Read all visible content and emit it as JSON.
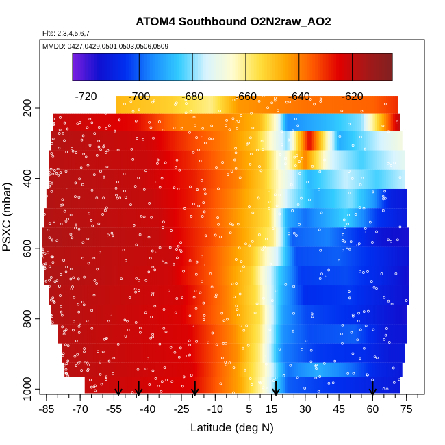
{
  "chart_data": {
    "type": "heatmap",
    "title": "ATOM4 Southbound O2N2raw_AO2",
    "subtitle_flights": "Flts: 2,3,4,5,6,7",
    "subtitle_dates": "MMDD: 0427,0429,0501,0503,0506,0509",
    "xlabel": "Latitude (deg N)",
    "ylabel": "PSXC (mbar)",
    "xlim": [
      -88,
      83
    ],
    "ylim": [
      1015,
      5
    ],
    "x_ticks": [
      -85,
      -70,
      -55,
      -40,
      -25,
      -10,
      5,
      15,
      30,
      45,
      60,
      75
    ],
    "x_tick_labels": [
      "-85",
      "-70",
      "-55",
      "-40",
      "-25",
      "-10",
      "5",
      "15",
      "30",
      "45",
      "60",
      "75"
    ],
    "x_minor_step": 5,
    "y_ticks": [
      200,
      400,
      600,
      800,
      1000
    ],
    "y_tick_labels": [
      "200",
      "400",
      "600",
      "800",
      "1000"
    ],
    "colorbar": {
      "range": [
        -725,
        -605
      ],
      "ticks": [
        -720,
        -700,
        -680,
        -660,
        -640,
        -620
      ],
      "tick_labels": [
        "-720",
        "-700",
        "-680",
        "-660",
        "-640",
        "-620"
      ],
      "colors": [
        "#7a1fe0",
        "#1010d0",
        "#0030f0",
        "#1a8cff",
        "#33ccff",
        "#d8f4ff",
        "#fffcd0",
        "#ffe040",
        "#ffa800",
        "#ff5a00",
        "#e00000",
        "#a81818",
        "#802020"
      ]
    },
    "profile_arrows_lat": [
      -53,
      -44,
      -19,
      17,
      60
    ],
    "bands": [
      {
        "pmin": 165,
        "pmax": 215,
        "lat_min": -54,
        "lat_max": 71,
        "profile": [
          [
            -54,
            -648
          ],
          [
            -30,
            -652
          ],
          [
            -12,
            -660
          ],
          [
            0,
            -643
          ],
          [
            30,
            -638
          ],
          [
            60,
            -636
          ],
          [
            71,
            -630
          ]
        ]
      },
      {
        "pmin": 215,
        "pmax": 265,
        "lat_min": -82,
        "lat_max": 72,
        "profile": [
          [
            -82,
            -620
          ],
          [
            -45,
            -626
          ],
          [
            -25,
            -640
          ],
          [
            -5,
            -640
          ],
          [
            10,
            -648
          ],
          [
            17,
            -666
          ],
          [
            22,
            -695
          ],
          [
            40,
            -688
          ],
          [
            55,
            -680
          ],
          [
            72,
            -618
          ]
        ]
      },
      {
        "pmin": 265,
        "pmax": 320,
        "lat_min": -83,
        "lat_max": 73,
        "profile": [
          [
            -83,
            -617
          ],
          [
            -40,
            -622
          ],
          [
            -22,
            -632
          ],
          [
            -5,
            -640
          ],
          [
            8,
            -650
          ],
          [
            16,
            -668
          ],
          [
            22,
            -680
          ],
          [
            32,
            -625
          ],
          [
            45,
            -690
          ],
          [
            60,
            -678
          ],
          [
            73,
            -668
          ]
        ]
      },
      {
        "pmin": 320,
        "pmax": 375,
        "lat_min": -84,
        "lat_max": 74,
        "profile": [
          [
            -84,
            -618
          ],
          [
            -40,
            -621
          ],
          [
            -20,
            -630
          ],
          [
            0,
            -642
          ],
          [
            12,
            -650
          ],
          [
            20,
            -672
          ],
          [
            30,
            -640
          ],
          [
            42,
            -675
          ],
          [
            55,
            -684
          ],
          [
            74,
            -672
          ]
        ]
      },
      {
        "pmin": 375,
        "pmax": 430,
        "lat_min": -84,
        "lat_max": 74,
        "profile": [
          [
            -84,
            -617
          ],
          [
            -45,
            -620
          ],
          [
            -20,
            -628
          ],
          [
            0,
            -640
          ],
          [
            12,
            -652
          ],
          [
            20,
            -668
          ],
          [
            32,
            -688
          ],
          [
            48,
            -676
          ],
          [
            62,
            -684
          ],
          [
            74,
            -676
          ]
        ]
      },
      {
        "pmin": 430,
        "pmax": 485,
        "lat_min": -85,
        "lat_max": 75,
        "profile": [
          [
            -85,
            -617
          ],
          [
            -40,
            -620
          ],
          [
            -20,
            -628
          ],
          [
            0,
            -642
          ],
          [
            14,
            -654
          ],
          [
            22,
            -676
          ],
          [
            35,
            -690
          ],
          [
            50,
            -680
          ],
          [
            60,
            -692
          ],
          [
            68,
            -710
          ],
          [
            75,
            -712
          ]
        ]
      },
      {
        "pmin": 485,
        "pmax": 540,
        "lat_min": -86,
        "lat_max": 75,
        "profile": [
          [
            -86,
            -617
          ],
          [
            -35,
            -621
          ],
          [
            -15,
            -632
          ],
          [
            2,
            -645
          ],
          [
            14,
            -655
          ],
          [
            22,
            -690
          ],
          [
            30,
            -698
          ],
          [
            48,
            -684
          ],
          [
            62,
            -704
          ],
          [
            75,
            -712
          ]
        ]
      },
      {
        "pmin": 540,
        "pmax": 595,
        "lat_min": -87,
        "lat_max": 76,
        "profile": [
          [
            -87,
            -616
          ],
          [
            -35,
            -620
          ],
          [
            -12,
            -633
          ],
          [
            4,
            -646
          ],
          [
            16,
            -660
          ],
          [
            24,
            -700
          ],
          [
            40,
            -696
          ],
          [
            55,
            -706
          ],
          [
            65,
            -714
          ],
          [
            76,
            -716
          ]
        ]
      },
      {
        "pmin": 595,
        "pmax": 650,
        "lat_min": -87,
        "lat_max": 76,
        "profile": [
          [
            -87,
            -617
          ],
          [
            -30,
            -621
          ],
          [
            -10,
            -636
          ],
          [
            6,
            -650
          ],
          [
            18,
            -676
          ],
          [
            26,
            -702
          ],
          [
            45,
            -700
          ],
          [
            60,
            -706
          ],
          [
            76,
            -714
          ]
        ]
      },
      {
        "pmin": 650,
        "pmax": 705,
        "lat_min": -86,
        "lat_max": 76,
        "profile": [
          [
            -86,
            -616
          ],
          [
            -30,
            -622
          ],
          [
            -10,
            -636
          ],
          [
            6,
            -652
          ],
          [
            18,
            -684
          ],
          [
            28,
            -704
          ],
          [
            48,
            -702
          ],
          [
            64,
            -708
          ],
          [
            76,
            -716
          ]
        ]
      },
      {
        "pmin": 705,
        "pmax": 760,
        "lat_min": -84,
        "lat_max": 76,
        "profile": [
          [
            -84,
            -617
          ],
          [
            -25,
            -623
          ],
          [
            -5,
            -640
          ],
          [
            8,
            -655
          ],
          [
            20,
            -690
          ],
          [
            30,
            -706
          ],
          [
            50,
            -704
          ],
          [
            64,
            -710
          ],
          [
            76,
            -715
          ]
        ]
      },
      {
        "pmin": 760,
        "pmax": 815,
        "lat_min": -83,
        "lat_max": 75,
        "profile": [
          [
            -83,
            -617
          ],
          [
            -25,
            -624
          ],
          [
            -5,
            -640
          ],
          [
            10,
            -656
          ],
          [
            20,
            -692
          ],
          [
            30,
            -702
          ],
          [
            52,
            -706
          ],
          [
            66,
            -712
          ],
          [
            75,
            -716
          ]
        ]
      },
      {
        "pmin": 815,
        "pmax": 870,
        "lat_min": -80,
        "lat_max": 75,
        "profile": [
          [
            -80,
            -618
          ],
          [
            -22,
            -624
          ],
          [
            -2,
            -641
          ],
          [
            10,
            -658
          ],
          [
            20,
            -694
          ],
          [
            32,
            -702
          ],
          [
            52,
            -700
          ],
          [
            66,
            -712
          ],
          [
            75,
            -714
          ]
        ]
      },
      {
        "pmin": 870,
        "pmax": 925,
        "lat_min": -78,
        "lat_max": 74,
        "profile": [
          [
            -78,
            -618
          ],
          [
            -22,
            -624
          ],
          [
            0,
            -642
          ],
          [
            10,
            -660
          ],
          [
            20,
            -696
          ],
          [
            35,
            -704
          ],
          [
            55,
            -706
          ],
          [
            68,
            -712
          ],
          [
            74,
            -712
          ]
        ]
      },
      {
        "pmin": 925,
        "pmax": 965,
        "lat_min": -77,
        "lat_max": 73,
        "profile": [
          [
            -77,
            -618
          ],
          [
            -20,
            -624
          ],
          [
            0,
            -644
          ],
          [
            12,
            -664
          ],
          [
            22,
            -698
          ],
          [
            36,
            -690
          ],
          [
            50,
            -698
          ],
          [
            62,
            -708
          ],
          [
            73,
            -712
          ]
        ]
      },
      {
        "pmin": 965,
        "pmax": 1012,
        "lat_min": -68,
        "lat_max": 72,
        "profile": [
          [
            -68,
            -620
          ],
          [
            -20,
            -625
          ],
          [
            2,
            -646
          ],
          [
            12,
            -666
          ],
          [
            22,
            -700
          ],
          [
            38,
            -704
          ],
          [
            55,
            -708
          ],
          [
            72,
            -712
          ]
        ]
      }
    ]
  }
}
